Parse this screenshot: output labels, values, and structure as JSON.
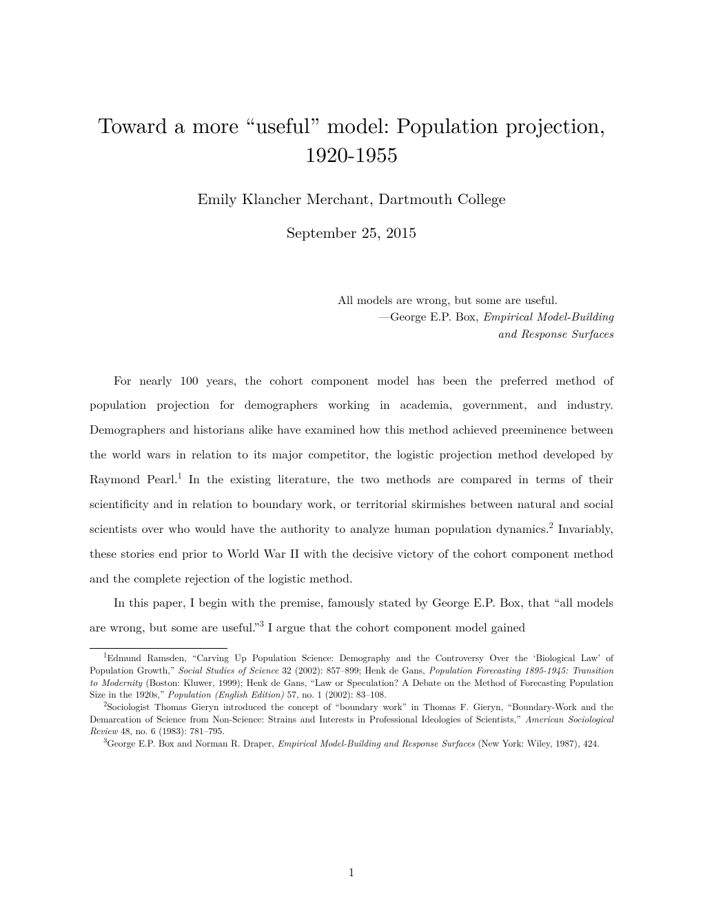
{
  "title_line1": "Toward a more “useful” model: Population projection,",
  "title_line2": "1920-1955",
  "author": "Emily Klancher Merchant, Dartmouth College",
  "date": "September 25, 2015",
  "epigraph": {
    "quote": "All models are wrong, but some are useful.",
    "attribution_prefix": "—George E.P. Box, ",
    "attribution_work_ital": "Empirical Model-Building",
    "attribution_line3_ital": "and Response Surfaces"
  },
  "body": {
    "p1_a": "For nearly 100 years, the cohort component model has been the preferred method of population projection for demographers working in academia, government, and industry. Demographers and historians alike have examined how this method achieved preeminence between the world wars in relation to its major competitor, the logistic projection method developed by Raymond Pearl.",
    "p1_sup1": "1",
    "p1_b": " In the existing literature, the two methods are compared in terms of their scientificity and in relation to boundary work, or territorial skirmishes between natural and social scientists over who would have the authority to analyze human population dynamics.",
    "p1_sup2": "2",
    "p1_c": " Invariably, these stories end prior to World War II with the decisive victory of the cohort component method and the complete rejection of the logistic method.",
    "p2_a": "In this paper, I begin with the premise, famously stated by George E.P. Box, that “all models are wrong, but some are useful.”",
    "p2_sup3": "3",
    "p2_b": " I argue that the cohort component model gained"
  },
  "footnotes": {
    "f1_sup": "1",
    "f1_a": "Edmund Ramsden, “Carving Up Population Science: Demography and the Controversy Over the ‘Biological Law’ of Population Growth,” ",
    "f1_ital1": "Social Studies of Science",
    "f1_b": " 32 (2002): 857–899; Henk de Gans, ",
    "f1_ital2": "Population Forecasting 1895-1945: Transition to Modernity",
    "f1_c": " (Boston: Kluwer, 1999); Henk de Gans, “Law or Speculation? A Debate on the Method of Forecasting Population Size in the 1920s,” ",
    "f1_ital3": "Population (English Edition)",
    "f1_d": " 57, no. 1 (2002): 83–108.",
    "f2_sup": "2",
    "f2_a": "Sociologist Thomas Gieryn introduced the concept of “boundary work” in Thomas F. Gieryn, “Boundary-Work and the Demarcation of Science from Non-Science: Strains and Interests in Professional Ideologies of Scientists,” ",
    "f2_ital1": "American Sociological Review",
    "f2_b": " 48, no. 6 (1983): 781–795.",
    "f3_sup": "3",
    "f3_a": "George E.P. Box and Norman R. Draper, ",
    "f3_ital1": "Empirical Model-Building and Response Surfaces",
    "f3_b": " (New York: Wiley, 1987), 424."
  },
  "page_number": "1"
}
